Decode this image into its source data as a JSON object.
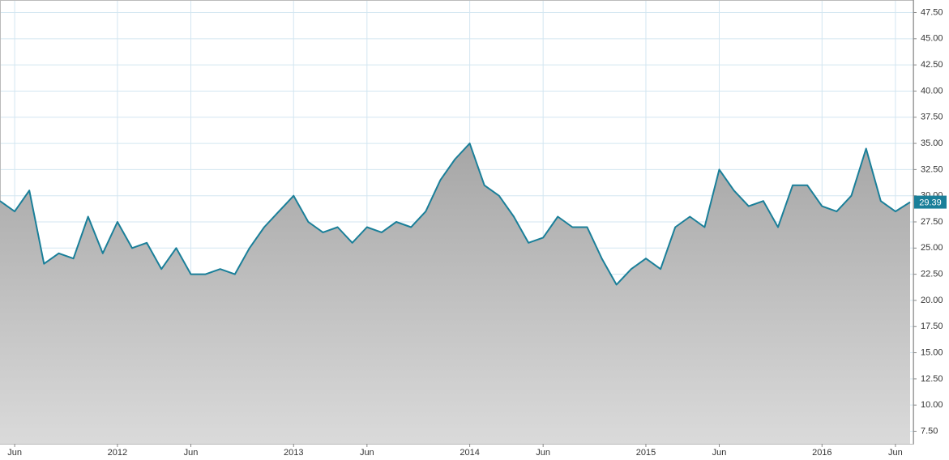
{
  "chart_data": {
    "type": "area",
    "x": [
      "2011-05",
      "2011-06",
      "2011-07",
      "2011-08",
      "2011-09",
      "2011-10",
      "2011-11",
      "2011-12",
      "2012-01",
      "2012-02",
      "2012-03",
      "2012-04",
      "2012-05",
      "2012-06",
      "2012-07",
      "2012-08",
      "2012-09",
      "2012-10",
      "2012-11",
      "2012-12",
      "2013-01",
      "2013-02",
      "2013-03",
      "2013-04",
      "2013-05",
      "2013-06",
      "2013-07",
      "2013-08",
      "2013-09",
      "2013-10",
      "2013-11",
      "2013-12",
      "2014-01",
      "2014-02",
      "2014-03",
      "2014-04",
      "2014-05",
      "2014-06",
      "2014-07",
      "2014-08",
      "2014-09",
      "2014-10",
      "2014-11",
      "2014-12",
      "2015-01",
      "2015-02",
      "2015-03",
      "2015-04",
      "2015-05",
      "2015-06",
      "2015-07",
      "2015-08",
      "2015-09",
      "2015-10",
      "2015-11",
      "2015-12",
      "2016-01",
      "2016-02",
      "2016-03",
      "2016-04",
      "2016-05",
      "2016-06",
      "2016-07"
    ],
    "values": [
      29.5,
      28.5,
      30.5,
      23.5,
      24.5,
      24,
      28,
      24.5,
      27.5,
      25,
      25.5,
      23,
      25,
      22.5,
      22.5,
      23,
      22.5,
      25,
      27,
      28.5,
      30,
      27.5,
      26.5,
      27,
      25.5,
      27,
      26.5,
      27.5,
      27,
      28.5,
      31.5,
      33.5,
      35,
      31,
      30,
      28,
      25.5,
      26,
      28,
      27,
      27,
      24,
      21.5,
      23,
      24,
      23,
      27,
      28,
      27,
      32.5,
      30.5,
      29,
      29.5,
      27,
      31,
      31,
      29,
      28.5,
      30,
      34.5,
      29.5,
      28.5,
      29.39
    ],
    "color": "#1a7f99",
    "xlim": [
      "2011-05",
      "2016-07"
    ],
    "xticks": [
      {
        "value": "2011-06",
        "label": "Jun"
      },
      {
        "value": "2012-01",
        "label": "2012"
      },
      {
        "value": "2012-06",
        "label": "Jun"
      },
      {
        "value": "2013-01",
        "label": "2013"
      },
      {
        "value": "2013-06",
        "label": "Jun"
      },
      {
        "value": "2014-01",
        "label": "2014"
      },
      {
        "value": "2014-06",
        "label": "Jun"
      },
      {
        "value": "2015-01",
        "label": "2015"
      },
      {
        "value": "2015-06",
        "label": "Jun"
      },
      {
        "value": "2016-01",
        "label": "2016"
      },
      {
        "value": "2016-06",
        "label": "Jun"
      }
    ],
    "ylim": [
      6.3,
      48.7
    ],
    "yticks": [
      {
        "value": 7.5,
        "label": "7.50"
      },
      {
        "value": 10,
        "label": "10.00"
      },
      {
        "value": 12.5,
        "label": "12.50"
      },
      {
        "value": 15,
        "label": "15.00"
      },
      {
        "value": 17.5,
        "label": "17.50"
      },
      {
        "value": 20,
        "label": "20.00"
      },
      {
        "value": 22.5,
        "label": "22.50"
      },
      {
        "value": 25,
        "label": "25.00"
      },
      {
        "value": 27.5,
        "label": "27.50"
      },
      {
        "value": 30,
        "label": "30.00"
      },
      {
        "value": 32.5,
        "label": "32.50"
      },
      {
        "value": 35,
        "label": "35.00"
      },
      {
        "value": 37.5,
        "label": "37.50"
      },
      {
        "value": 40,
        "label": "40.00"
      },
      {
        "value": 42.5,
        "label": "42.50"
      },
      {
        "value": 45,
        "label": "45.00"
      },
      {
        "value": 47.5,
        "label": "47.50"
      }
    ],
    "grid": true
  }
}
